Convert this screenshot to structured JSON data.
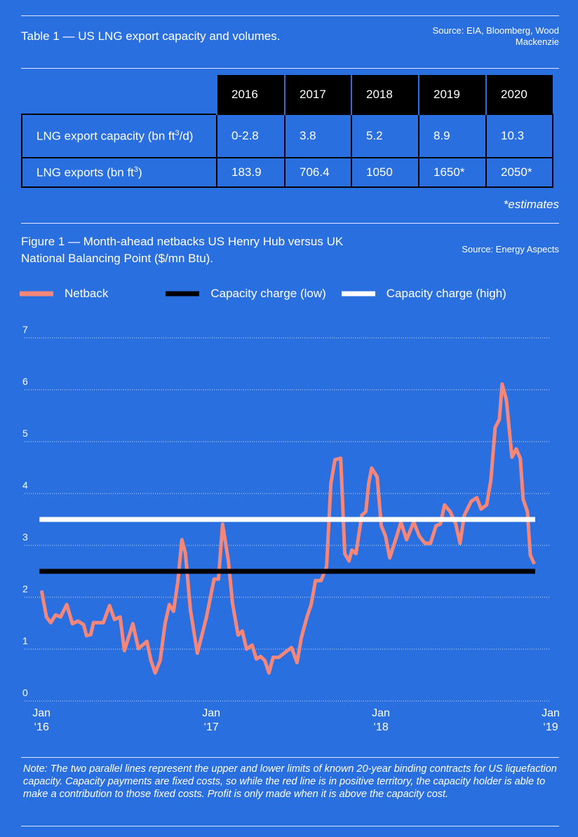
{
  "table": {
    "title": "Table 1 — US LNG export capacity and volumes.",
    "source": "Source: EIA, Bloomberg, Wood Mackenzie",
    "columns": [
      "2016",
      "2017",
      "2018",
      "2019",
      "2020"
    ],
    "rows": [
      {
        "label": [
          "LNG export capacity (bn ft",
          "3",
          "/d)"
        ],
        "cells": [
          "0-2.8",
          "3.8",
          "5.2",
          "8.9",
          "10.3"
        ]
      },
      {
        "label": [
          "LNG exports (bn ft",
          "3",
          ")"
        ],
        "cells": [
          "183.9",
          "706.4",
          "1050",
          "1650*",
          "2050*"
        ]
      }
    ],
    "footnote": "*estimates"
  },
  "chart_data": {
    "type": "line",
    "title": "Figure 1 — Month-ahead netbacks US Henry Hub versus UK National Balancing Point ($/mn Btu).",
    "source": "Source: Energy Aspects",
    "xlim": [
      2015.9,
      2019.0
    ],
    "xticks": [
      {
        "value": 2016,
        "label": "Jan ‘16"
      },
      {
        "value": 2017,
        "label": "Jan ‘17"
      },
      {
        "value": 2018,
        "label": "Jan ‘18"
      },
      {
        "value": 2019,
        "label": "Jan ‘19"
      }
    ],
    "ylim": [
      0,
      7
    ],
    "yticks": [
      0,
      1,
      2,
      3,
      4,
      5,
      6,
      7
    ],
    "grid": true,
    "series": [
      {
        "name": "Netback",
        "color": "#f4877a",
        "x": [
          2016.0,
          2016.029,
          2016.054,
          2016.083,
          2016.112,
          2016.149,
          2016.182,
          2016.215,
          2016.248,
          2016.265,
          2016.29,
          2016.306,
          2016.364,
          2016.401,
          2016.43,
          2016.463,
          2016.488,
          2016.538,
          2016.571,
          2016.621,
          2016.645,
          2016.67,
          2016.699,
          2016.728,
          2016.753,
          2016.778,
          2016.803,
          2016.827,
          2016.848,
          2016.877,
          2016.918,
          2016.972,
          2017.017,
          2017.043,
          2017.067,
          2017.101,
          2017.125,
          2017.158,
          2017.183,
          2017.208,
          2017.241,
          2017.266,
          2017.291,
          2017.316,
          2017.34,
          2017.365,
          2017.398,
          2017.44,
          2017.473,
          2017.506,
          2017.531,
          2017.564,
          2017.589,
          2017.614,
          2017.647,
          2017.68,
          2017.705,
          2017.729,
          2017.763,
          2017.787,
          2017.812,
          2017.829,
          2017.853,
          2017.887,
          2017.911,
          2017.928,
          2017.945,
          2017.978,
          2018.002,
          2018.027,
          2018.052,
          2018.093,
          2018.118,
          2018.151,
          2018.193,
          2018.226,
          2018.259,
          2018.292,
          2018.325,
          2018.35,
          2018.375,
          2018.408,
          2018.441,
          2018.466,
          2018.491,
          2018.532,
          2018.565,
          2018.59,
          2018.623,
          2018.648,
          2018.673,
          2018.698,
          2018.714,
          2018.739,
          2018.772,
          2018.797,
          2018.821,
          2018.838,
          2018.863,
          2018.88,
          2018.904
        ],
        "values": [
          2.13,
          1.62,
          1.51,
          1.66,
          1.62,
          1.86,
          1.49,
          1.54,
          1.47,
          1.26,
          1.28,
          1.51,
          1.51,
          1.84,
          1.57,
          1.62,
          0.97,
          1.49,
          1.01,
          1.15,
          0.78,
          0.54,
          0.78,
          1.49,
          1.86,
          1.73,
          2.3,
          3.11,
          2.84,
          1.76,
          0.92,
          1.62,
          2.35,
          2.35,
          3.41,
          2.7,
          1.89,
          1.27,
          1.35,
          1.0,
          1.08,
          0.81,
          0.86,
          0.78,
          0.54,
          0.84,
          0.84,
          0.95,
          1.03,
          0.74,
          1.22,
          1.62,
          1.86,
          2.32,
          2.32,
          2.59,
          4.19,
          4.65,
          4.68,
          2.84,
          2.7,
          2.91,
          2.84,
          3.58,
          3.65,
          4.19,
          4.49,
          4.32,
          3.38,
          3.18,
          2.76,
          3.18,
          3.45,
          3.11,
          3.45,
          3.18,
          3.04,
          3.04,
          3.38,
          3.41,
          3.78,
          3.65,
          3.41,
          3.04,
          3.58,
          3.85,
          3.92,
          3.7,
          3.78,
          4.26,
          5.27,
          5.43,
          6.11,
          5.81,
          4.7,
          4.86,
          4.68,
          3.89,
          3.65,
          2.81,
          2.64
        ]
      },
      {
        "name": "Capacity charge (low)",
        "color": "#000000",
        "x": [
          2015.988,
          2018.909
        ],
        "values": [
          2.5,
          2.5
        ]
      },
      {
        "name": "Capacity charge (high)",
        "color": "#ffffff",
        "x": [
          2015.988,
          2018.909
        ],
        "values": [
          3.5,
          3.5
        ]
      }
    ],
    "note": "Note: The two parallel lines represent the upper and lower limits of known 20-year binding contracts for US liquefaction capacity. Capacity payments are fixed costs, so while the red line is in positive territory, the capacity holder is able to make a contribution to those fixed costs. Profit is only made when it is above the capacity cost."
  }
}
